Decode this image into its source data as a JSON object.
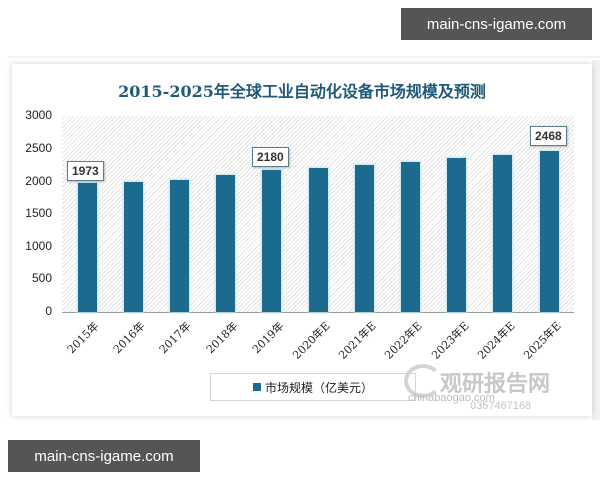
{
  "badges": {
    "top": "main-cns-igame.com",
    "bottom": "main-cns-igame.com"
  },
  "watermark": {
    "brand": "观研报告网",
    "sub": "chinabaogao.com",
    "sub2": "0357467168"
  },
  "colors": {
    "bar": "#1d6a8f",
    "title": "#1f5a78",
    "badge_bg": "#555555"
  },
  "chart_data": {
    "type": "bar",
    "title": "2015-2025年全球工业自动化设备市场规模及预测",
    "xlabel": "",
    "ylabel": "",
    "categories": [
      "2015年",
      "2016年",
      "2017年",
      "2018年",
      "2019年",
      "2020年E",
      "2021年E",
      "2022年E",
      "2023年E",
      "2024年E",
      "2025年E"
    ],
    "series": [
      {
        "name": "市场规模（亿美元）",
        "values": [
          1973,
          1990,
          2020,
          2100,
          2180,
          2210,
          2250,
          2300,
          2360,
          2410,
          2468
        ]
      }
    ],
    "data_labels": [
      {
        "category": "2015年",
        "value": "1973"
      },
      {
        "category": "2019年",
        "value": "2180"
      },
      {
        "category": "2025年E",
        "value": "2468"
      }
    ],
    "yticks": [
      "3000",
      "2500",
      "2000",
      "1500",
      "1000",
      "500",
      "0"
    ],
    "ylim": [
      0,
      3000
    ],
    "grid": false,
    "legend_position": "bottom"
  }
}
